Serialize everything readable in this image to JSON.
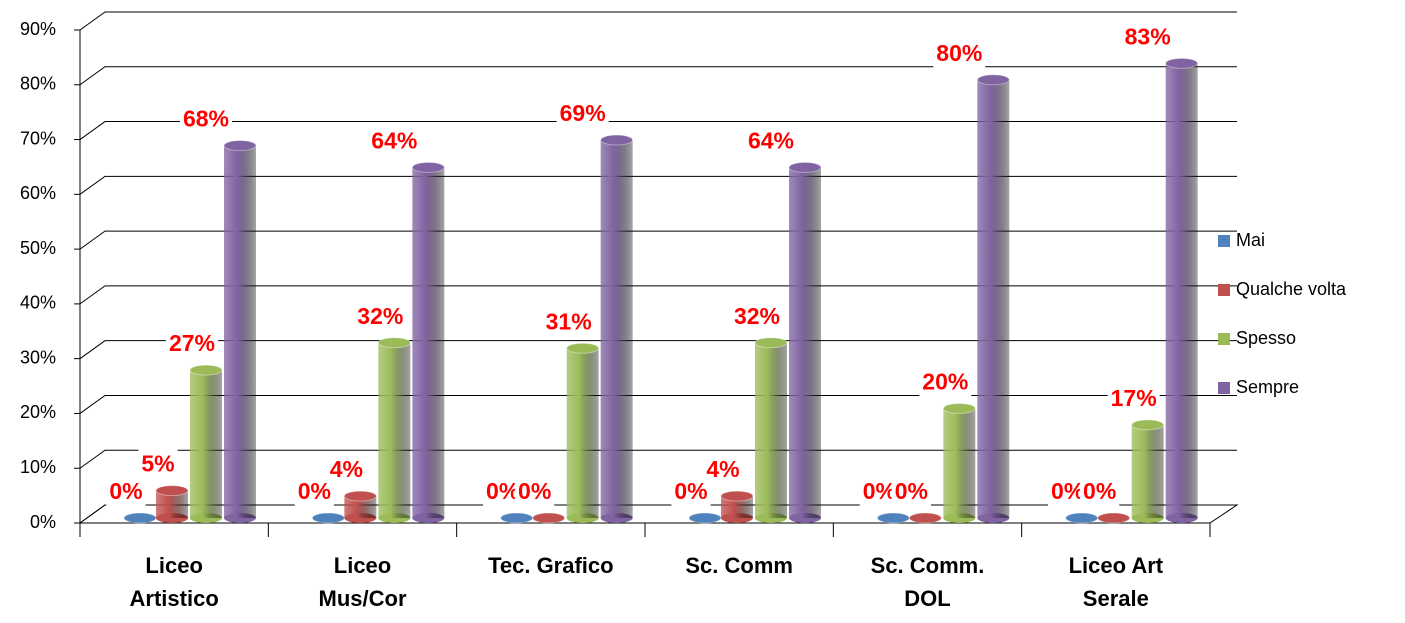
{
  "chart_data": {
    "type": "bar3d",
    "categories": [
      "Liceo\nArtistico",
      "Liceo\nMus/Cor",
      "Tec. Grafico",
      "Sc. Comm",
      "Sc. Comm.\nDOL",
      "Liceo Art\nSerale"
    ],
    "series": [
      {
        "name": "Mai",
        "color": "#4f81bd",
        "values": [
          0,
          0,
          0,
          0,
          0,
          0
        ],
        "value_labels": [
          "0%",
          "0%",
          "0%",
          "0%",
          "0%",
          "0%"
        ]
      },
      {
        "name": "Qualche volta",
        "color": "#c0504d",
        "values": [
          5,
          4,
          0,
          4,
          0,
          0
        ],
        "value_labels": [
          "5%",
          "4%",
          "0%",
          "4%",
          "0%",
          "0%"
        ]
      },
      {
        "name": "Spesso",
        "color": "#9bbb59",
        "values": [
          27,
          32,
          31,
          32,
          20,
          17
        ],
        "value_labels": [
          "27%",
          "32%",
          "31%",
          "32%",
          "20%",
          "17%"
        ]
      },
      {
        "name": "Sempre",
        "color": "#8064a2",
        "values": [
          68,
          64,
          69,
          64,
          80,
          83
        ],
        "value_labels": [
          "68%",
          "64%",
          "69%",
          "64%",
          "80%",
          "83%"
        ]
      }
    ],
    "ylim": [
      0,
      90
    ],
    "yticks": [
      {
        "value": 0,
        "label": "0%"
      },
      {
        "value": 10,
        "label": "10%"
      },
      {
        "value": 20,
        "label": "20%"
      },
      {
        "value": 30,
        "label": "30%"
      },
      {
        "value": 40,
        "label": "40%"
      },
      {
        "value": 50,
        "label": "50%"
      },
      {
        "value": 60,
        "label": "60%"
      },
      {
        "value": 70,
        "label": "70%"
      },
      {
        "value": 80,
        "label": "80%"
      },
      {
        "value": 90,
        "label": "90%"
      }
    ],
    "grid": true,
    "legend": "right"
  }
}
